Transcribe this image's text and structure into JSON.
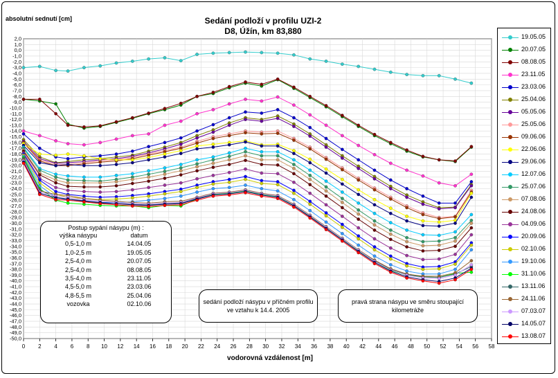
{
  "chart_data": {
    "type": "line",
    "title": "Sedání podloží v profilu UZI-2",
    "subtitle": "D8, Úžín, km 83,880",
    "ylabel": "absolutní sednutí [cm]",
    "xlabel": "vodorovná vzdálenost [m]",
    "xlim": [
      0,
      58
    ],
    "ylim": [
      -50,
      2
    ],
    "xticks": [
      "0",
      "2",
      "4",
      "6",
      "8",
      "10",
      "12",
      "14",
      "16",
      "18",
      "20",
      "22",
      "24",
      "26",
      "28",
      "30",
      "32",
      "34",
      "36",
      "38",
      "40",
      "42",
      "44",
      "46",
      "48",
      "50",
      "52",
      "54",
      "56",
      "58"
    ],
    "yticks": [
      "2,0",
      "1,0",
      "0,0",
      "-1,0",
      "-2,0",
      "-3,0",
      "-4,0",
      "-5,0",
      "-6,0",
      "-7,0",
      "-8,0",
      "-9,0",
      "-10,0",
      "-11,0",
      "-12,0",
      "-13,0",
      "-14,0",
      "-15,0",
      "-16,0",
      "-17,0",
      "-18,0",
      "-19,0",
      "-20,0",
      "-21,0",
      "-22,0",
      "-23,0",
      "-24,0",
      "-25,0",
      "-26,0",
      "-27,0",
      "-28,0",
      "-29,0",
      "-30,0",
      "-31,0",
      "-32,0",
      "-33,0",
      "-34,0",
      "-35,0",
      "-36,0",
      "-37,0",
      "-38,0",
      "-39,0",
      "-40,0",
      "-41,0",
      "-42,0",
      "-43,0",
      "-44,0",
      "-45,0",
      "-46,0",
      "-47,0",
      "-48,0",
      "-49,0",
      "-50,0"
    ],
    "grid": true,
    "legend_position": "right",
    "x": [
      0,
      2,
      4,
      5.5,
      7.5,
      9.5,
      11.5,
      13.5,
      15.5,
      17.5,
      19.5,
      21.5,
      23.5,
      25.5,
      27.5,
      29.5,
      31.5,
      33.5,
      35.5,
      37.5,
      39.5,
      41.5,
      43.5,
      45.5,
      47.5,
      49.5,
      51.5,
      53.5,
      55.5
    ],
    "series": [
      {
        "name": "19.05.05",
        "color": "#33cccc",
        "values": [
          -3.0,
          -2.8,
          -3.5,
          -3.6,
          -3.0,
          -2.7,
          -2.2,
          -1.9,
          -1.5,
          -1.3,
          -1.8,
          -0.7,
          -0.5,
          -0.4,
          -0.3,
          -0.4,
          -0.5,
          -0.8,
          -1.5,
          -1.9,
          -2.4,
          -2.8,
          -3.3,
          -3.8,
          -4.2,
          -4.4,
          -4.4,
          -5.0,
          -5.7
        ]
      },
      {
        "name": "20.07.05",
        "color": "#008000",
        "values": [
          -8.5,
          -8.8,
          -9.3,
          -12.8,
          -13.5,
          -13.2,
          -12.5,
          -11.8,
          -11.0,
          -10.3,
          -9.5,
          -8.0,
          -7.5,
          -6.5,
          -5.7,
          -6.2,
          -5.1,
          -6.6,
          -8.2,
          -9.8,
          -11.5,
          -13.2,
          -14.8,
          -16.2,
          -17.5,
          -18.5,
          -19.0,
          -19.3,
          -16.8
        ]
      },
      {
        "name": "08.08.05",
        "color": "#800000",
        "values": [
          -8.5,
          -8.5,
          -11.0,
          -13.0,
          -13.3,
          -13.1,
          -12.4,
          -11.7,
          -10.9,
          -10.1,
          -9.2,
          -8.0,
          -7.3,
          -6.3,
          -5.5,
          -5.9,
          -5.0,
          -6.4,
          -8.0,
          -9.6,
          -11.3,
          -13.0,
          -14.6,
          -16.0,
          -17.3,
          -18.4,
          -19.0,
          -19.2,
          -16.7
        ]
      },
      {
        "name": "23.11.05",
        "color": "#ff33cc",
        "values": [
          -14.0,
          -14.8,
          -15.7,
          -16.2,
          -16.4,
          -16.0,
          -15.4,
          -14.8,
          -14.5,
          -13.0,
          -12.3,
          -11.0,
          -10.3,
          -9.3,
          -8.5,
          -8.8,
          -8.1,
          -9.5,
          -11.2,
          -13.0,
          -14.8,
          -16.5,
          -18.1,
          -19.6,
          -20.8,
          -21.8,
          -23.0,
          -23.5,
          -21.5
        ]
      },
      {
        "name": "23.03.06",
        "color": "#0000cc",
        "values": [
          -14.5,
          -17.0,
          -18.5,
          -18.8,
          -18.5,
          -18.3,
          -18.0,
          -17.5,
          -16.7,
          -16.0,
          -15.2,
          -14.0,
          -12.9,
          -11.7,
          -10.7,
          -10.9,
          -10.3,
          -11.7,
          -13.4,
          -15.3,
          -17.2,
          -19.0,
          -20.8,
          -22.5,
          -24.0,
          -25.3,
          -26.5,
          -26.5,
          -22.8
        ]
      },
      {
        "name": "25.04.06",
        "color": "#808000",
        "values": [
          -15.5,
          -18.5,
          -19.5,
          -19.3,
          -19.0,
          -18.8,
          -18.5,
          -18.2,
          -17.5,
          -16.8,
          -16.0,
          -14.8,
          -13.8,
          -12.6,
          -11.7,
          -12.0,
          -11.4,
          -12.8,
          -14.5,
          -16.4,
          -18.3,
          -20.1,
          -21.9,
          -23.6,
          -25.1,
          -26.3,
          -27.3,
          -27.2,
          -23.3
        ]
      },
      {
        "name": "05.05.06",
        "color": "#660099",
        "values": [
          -15.8,
          -18.8,
          -19.6,
          -19.5,
          -19.3,
          -19.0,
          -18.8,
          -18.4,
          -17.8,
          -17.1,
          -16.3,
          -15.2,
          -14.2,
          -13.0,
          -12.0,
          -12.3,
          -11.8,
          -13.2,
          -14.9,
          -16.8,
          -18.7,
          -20.5,
          -22.3,
          -24.0,
          -25.5,
          -26.7,
          -27.5,
          -27.3,
          -23.5
        ]
      },
      {
        "name": "25.05.06",
        "color": "#ff9999",
        "values": [
          -16.0,
          -19.0,
          -19.8,
          -19.8,
          -19.5,
          -19.2,
          -19.0,
          -18.6,
          -18.0,
          -17.4,
          -16.8,
          -15.8,
          -15.0,
          -14.5,
          -14.0,
          -14.2,
          -14.0,
          -15.3,
          -16.8,
          -18.6,
          -20.4,
          -22.2,
          -23.9,
          -25.5,
          -27.0,
          -28.2,
          -29.0,
          -28.8,
          -24.3
        ]
      },
      {
        "name": "09.06.06",
        "color": "#993300",
        "values": [
          -16.0,
          -19.2,
          -20.0,
          -20.0,
          -19.7,
          -19.4,
          -19.2,
          -18.8,
          -18.2,
          -17.6,
          -17.0,
          -16.1,
          -15.3,
          -14.8,
          -14.3,
          -14.5,
          -14.4,
          -15.6,
          -17.1,
          -18.9,
          -20.7,
          -22.5,
          -24.2,
          -25.8,
          -27.3,
          -28.5,
          -29.2,
          -28.9,
          -24.6
        ]
      },
      {
        "name": "22.06.06",
        "color": "#ffff00",
        "values": [
          -16.2,
          -18.0,
          -18.2,
          -18.0,
          -18.3,
          -18.8,
          -19.0,
          -19.0,
          -18.6,
          -18.0,
          -17.4,
          -16.6,
          -16.3,
          -16.0,
          -15.7,
          -16.4,
          -16.3,
          -17.4,
          -18.9,
          -20.6,
          -22.4,
          -24.2,
          -25.9,
          -27.4,
          -28.8,
          -29.6,
          -29.8,
          -29.5,
          -24.8
        ]
      },
      {
        "name": "29.06.06",
        "color": "#000080",
        "values": [
          -16.5,
          -19.5,
          -20.0,
          -19.8,
          -20.0,
          -20.0,
          -19.8,
          -19.5,
          -19.0,
          -18.5,
          -17.9,
          -17.1,
          -16.8,
          -16.4,
          -15.9,
          -16.6,
          -16.6,
          -17.9,
          -19.5,
          -21.3,
          -23.2,
          -25.0,
          -26.8,
          -28.3,
          -29.6,
          -30.4,
          -30.5,
          -30.0,
          -25.5
        ]
      },
      {
        "name": "12.07.06",
        "color": "#00ccff",
        "values": [
          -16.8,
          -20.5,
          -21.5,
          -21.8,
          -22.0,
          -22.0,
          -21.7,
          -21.4,
          -20.9,
          -20.4,
          -19.8,
          -19.0,
          -18.5,
          -17.8,
          -17.0,
          -17.6,
          -17.6,
          -19.0,
          -20.8,
          -22.7,
          -24.6,
          -26.5,
          -28.3,
          -29.9,
          -31.2,
          -32.0,
          -32.1,
          -31.5,
          -28.5
        ]
      },
      {
        "name": "25.07.06",
        "color": "#339966",
        "values": [
          -17.0,
          -20.8,
          -22.0,
          -22.5,
          -22.6,
          -22.7,
          -22.4,
          -22.0,
          -21.5,
          -21.0,
          -20.4,
          -19.7,
          -19.0,
          -18.4,
          -17.6,
          -18.3,
          -18.3,
          -19.8,
          -21.7,
          -23.7,
          -25.7,
          -27.7,
          -29.6,
          -31.2,
          -32.5,
          -33.2,
          -33.1,
          -32.5,
          -29.5
        ]
      },
      {
        "name": "07.08.06",
        "color": "#cc9966",
        "values": [
          -17.3,
          -21.3,
          -22.5,
          -23.0,
          -23.0,
          -23.0,
          -22.8,
          -22.4,
          -22.0,
          -21.5,
          -20.9,
          -20.2,
          -19.6,
          -19.0,
          -18.3,
          -19.0,
          -19.0,
          -20.5,
          -22.4,
          -24.4,
          -26.4,
          -28.4,
          -30.3,
          -31.9,
          -33.2,
          -33.9,
          -33.8,
          -33.1,
          -30.0
        ]
      },
      {
        "name": "24.08.06",
        "color": "#660000",
        "values": [
          -17.5,
          -21.6,
          -23.0,
          -23.6,
          -23.7,
          -23.7,
          -23.5,
          -23.1,
          -22.7,
          -22.2,
          -21.6,
          -20.9,
          -20.3,
          -19.8,
          -19.1,
          -19.8,
          -19.9,
          -21.4,
          -23.3,
          -25.3,
          -27.3,
          -29.3,
          -31.2,
          -32.8,
          -34.1,
          -34.8,
          -34.7,
          -34.0,
          -30.8
        ]
      },
      {
        "name": "04.09.06",
        "color": "#993399",
        "values": [
          -17.8,
          -22.2,
          -23.8,
          -24.3,
          -24.5,
          -24.6,
          -24.5,
          -24.2,
          -23.8,
          -23.4,
          -23.0,
          -22.3,
          -21.7,
          -21.2,
          -20.6,
          -21.3,
          -21.4,
          -22.9,
          -24.8,
          -26.8,
          -28.8,
          -30.8,
          -32.7,
          -34.3,
          -35.6,
          -36.3,
          -36.2,
          -35.4,
          -32.0
        ]
      },
      {
        "name": "20.09.06",
        "color": "#0000ff",
        "values": [
          -18.0,
          -22.5,
          -24.5,
          -25.0,
          -25.3,
          -25.5,
          -25.4,
          -25.2,
          -24.9,
          -24.5,
          -24.1,
          -23.4,
          -22.8,
          -22.4,
          -21.9,
          -22.6,
          -22.8,
          -24.3,
          -26.2,
          -28.2,
          -30.2,
          -32.2,
          -34.1,
          -35.7,
          -37.0,
          -37.6,
          -37.5,
          -36.7,
          -33.4
        ]
      },
      {
        "name": "02.10.06",
        "color": "#cccc00",
        "values": [
          -18.2,
          -23.0,
          -25.0,
          -25.5,
          -25.7,
          -25.9,
          -25.8,
          -25.6,
          -25.3,
          -24.9,
          -24.5,
          -23.8,
          -23.2,
          -22.9,
          -22.4,
          -23.1,
          -23.3,
          -24.8,
          -26.7,
          -28.7,
          -30.7,
          -32.7,
          -34.6,
          -36.2,
          -37.4,
          -38.0,
          -37.9,
          -37.1,
          -33.8
        ]
      },
      {
        "name": "19.10.06",
        "color": "#3399ff",
        "values": [
          -18.4,
          -23.5,
          -25.5,
          -26.0,
          -26.2,
          -26.4,
          -26.4,
          -26.3,
          -26.0,
          -25.7,
          -25.3,
          -24.6,
          -24.0,
          -23.8,
          -23.4,
          -24.0,
          -24.4,
          -25.9,
          -27.8,
          -29.8,
          -31.8,
          -33.8,
          -35.7,
          -37.2,
          -38.3,
          -38.8,
          -38.8,
          -38.0,
          -34.6
        ]
      },
      {
        "name": "31.10.06",
        "color": "#00ff00",
        "values": [
          -18.6,
          -24.0,
          -26.0,
          -26.5,
          -26.7,
          -26.9,
          -27.0,
          -27.0,
          -27.3,
          -26.9,
          -27.0,
          -25.8,
          -25.0,
          -24.8,
          -24.4,
          -25.0,
          -25.4,
          -26.9,
          -28.8,
          -30.8,
          -32.8,
          -34.8,
          -36.6,
          -38.2,
          -39.0,
          -39.3,
          -39.4,
          -38.7,
          -38.5
        ]
      },
      {
        "name": "13.11.06",
        "color": "#336666",
        "values": [
          -18.8,
          -24.2,
          -25.5,
          -25.8,
          -26.2,
          -26.5,
          -26.6,
          -26.7,
          -26.8,
          -26.6,
          -26.5,
          -25.7,
          -24.9,
          -24.7,
          -24.3,
          -24.9,
          -25.3,
          -26.8,
          -28.7,
          -30.7,
          -32.7,
          -34.7,
          -36.5,
          -38.0,
          -38.9,
          -39.3,
          -39.4,
          -38.8,
          -37.5
        ]
      },
      {
        "name": "24.11.06",
        "color": "#996633",
        "values": [
          -19.0,
          -24.4,
          -25.0,
          -25.2,
          -25.7,
          -26.0,
          -26.2,
          -26.4,
          -26.5,
          -26.3,
          -26.2,
          -25.5,
          -24.8,
          -24.6,
          -24.2,
          -24.8,
          -25.2,
          -26.7,
          -28.6,
          -30.6,
          -32.6,
          -34.6,
          -36.4,
          -37.9,
          -38.8,
          -39.2,
          -39.2,
          -38.6,
          -36.5
        ]
      },
      {
        "name": "07.03.07",
        "color": "#cc99ff",
        "values": [
          -19.2,
          -24.6,
          -25.3,
          -25.5,
          -25.9,
          -26.2,
          -26.4,
          -26.6,
          -26.7,
          -26.5,
          -26.4,
          -25.6,
          -24.9,
          -24.7,
          -24.3,
          -24.9,
          -25.3,
          -26.8,
          -28.7,
          -30.7,
          -32.7,
          -34.7,
          -36.6,
          -38.1,
          -39.0,
          -39.5,
          -39.6,
          -39.0,
          -37.2
        ]
      },
      {
        "name": "14.05.07",
        "color": "#000066",
        "values": [
          -19.4,
          -24.8,
          -25.6,
          -25.8,
          -26.1,
          -26.4,
          -26.6,
          -26.8,
          -26.9,
          -26.7,
          -26.6,
          -25.8,
          -25.1,
          -24.9,
          -24.5,
          -25.1,
          -25.5,
          -27.0,
          -28.9,
          -30.9,
          -32.9,
          -34.9,
          -36.8,
          -38.3,
          -39.3,
          -39.8,
          -40.1,
          -39.5,
          -37.8
        ]
      },
      {
        "name": "13.08.07",
        "color": "#ff0000",
        "values": [
          -19.6,
          -25.0,
          -25.9,
          -26.0,
          -26.3,
          -26.6,
          -26.8,
          -27.0,
          -27.1,
          -26.9,
          -26.8,
          -26.0,
          -25.3,
          -25.1,
          -24.7,
          -25.3,
          -25.7,
          -27.2,
          -29.1,
          -31.1,
          -33.1,
          -35.1,
          -37.0,
          -38.5,
          -39.5,
          -40.0,
          -40.4,
          -39.8,
          -38.0
        ]
      }
    ]
  },
  "table_box": {
    "heading": "Postup sypání násypu (m) :",
    "col1": "výška násypu",
    "col2": "datum",
    "rows": [
      {
        "h": "0,5-1,0 m",
        "d": "14.04.05"
      },
      {
        "h": "1,0-2,5 m",
        "d": "19.05.05"
      },
      {
        "h": "2,5-4,0 m",
        "d": "20.07.05"
      },
      {
        "h": "2,5-4,0 m",
        "d": "08.08.05"
      },
      {
        "h": "3,5-4,0 m",
        "d": "23.11.05"
      },
      {
        "h": "4,5-5,0 m",
        "d": "23.03.06"
      },
      {
        "h": "4,8-5,5 m",
        "d": "25.04.06"
      },
      {
        "h": "vozovka",
        "d": "02.10.06"
      }
    ]
  },
  "note_left": "sedání podloží násypu v příčném profilu ve vztahu k 14.4. 2005",
  "note_right": "pravá strana násypu ve směru stoupající kilometráže"
}
